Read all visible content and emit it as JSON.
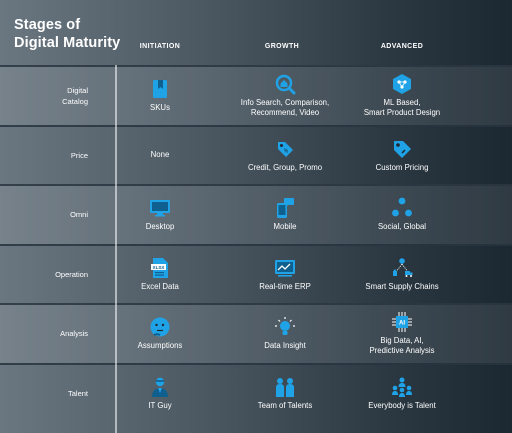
{
  "title": {
    "line1": "Stages of",
    "line2": "Digital Maturity"
  },
  "columns": [
    "INITIATION",
    "GROWTH",
    "ADVANCED"
  ],
  "rows": [
    {
      "label": "Digital\nCatalog",
      "cells": [
        {
          "text": "SKUs",
          "icon": "bookmark-book-icon"
        },
        {
          "text": "Info Search, Comparison,\nRecommend, Video",
          "icon": "home-search-icon"
        },
        {
          "text": "ML Based,\nSmart Product Design",
          "icon": "hexagon-network-icon"
        }
      ]
    },
    {
      "label": "Price",
      "cells": [
        {
          "text": "None",
          "icon": ""
        },
        {
          "text": "Credit, Group, Promo",
          "icon": "price-tag-small-icon"
        },
        {
          "text": "Custom Pricing",
          "icon": "price-tag-icon"
        }
      ]
    },
    {
      "label": "Omni",
      "cells": [
        {
          "text": "Desktop",
          "icon": "desktop-monitor-icon"
        },
        {
          "text": "Mobile",
          "icon": "mobile-chat-icon"
        },
        {
          "text": "Social, Global",
          "icon": "network-nodes-icon"
        }
      ]
    },
    {
      "label": "Operation",
      "cells": [
        {
          "text": "Excel Data",
          "icon": "xlsx-file-icon"
        },
        {
          "text": "Real-time ERP",
          "icon": "erp-chart-icon"
        },
        {
          "text": "Smart Supply Chains",
          "icon": "supply-chain-icon"
        }
      ]
    },
    {
      "label": "Analysis",
      "cells": [
        {
          "text": "Assumptions",
          "icon": "thinking-face-icon"
        },
        {
          "text": "Data Insight",
          "icon": "lightbulb-icon"
        },
        {
          "text": "Big Data, AI,\nPredictive Analysis",
          "icon": "ai-chip-icon"
        }
      ]
    },
    {
      "label": "Talent",
      "cells": [
        {
          "text": "IT Guy",
          "icon": "person-icon"
        },
        {
          "text": "Team of Talents",
          "icon": "two-people-icon"
        },
        {
          "text": "Everybody is Talent",
          "icon": "group-people-icon"
        }
      ]
    }
  ],
  "colors": {
    "icon_primary": "#1fa3e6",
    "icon_dark": "#0f5f8f",
    "text": "#ffffff"
  }
}
